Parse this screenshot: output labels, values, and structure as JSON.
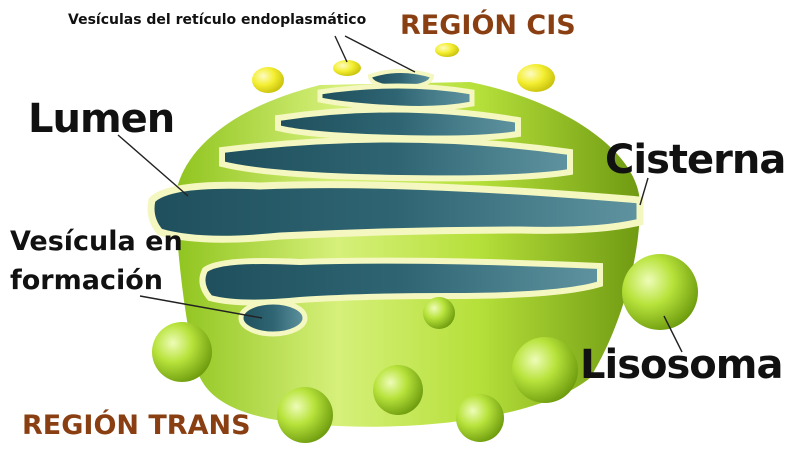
{
  "labels": {
    "er_vesicles": "Vesículas del retículo endoplasmático",
    "region_cis": "REGIÓN CIS",
    "lumen": "Lumen",
    "cisterna": "Cisterna",
    "forming_vesicle_line1": "Vesícula en",
    "forming_vesicle_line2": "formación",
    "lisosoma": "Lisosoma",
    "region_trans": "REGIÓN TRANS"
  },
  "colors": {
    "body_green_light": "#d6f07a",
    "body_green": "#a8d42a",
    "body_green_dark": "#6f9a12",
    "lumen_teal_dark": "#1f4f5c",
    "lumen_teal": "#4f8593",
    "rim_cream": "#f4f7c0",
    "vesicle_yellow": "#f2ee2a",
    "region_label": "#8a3f12"
  }
}
